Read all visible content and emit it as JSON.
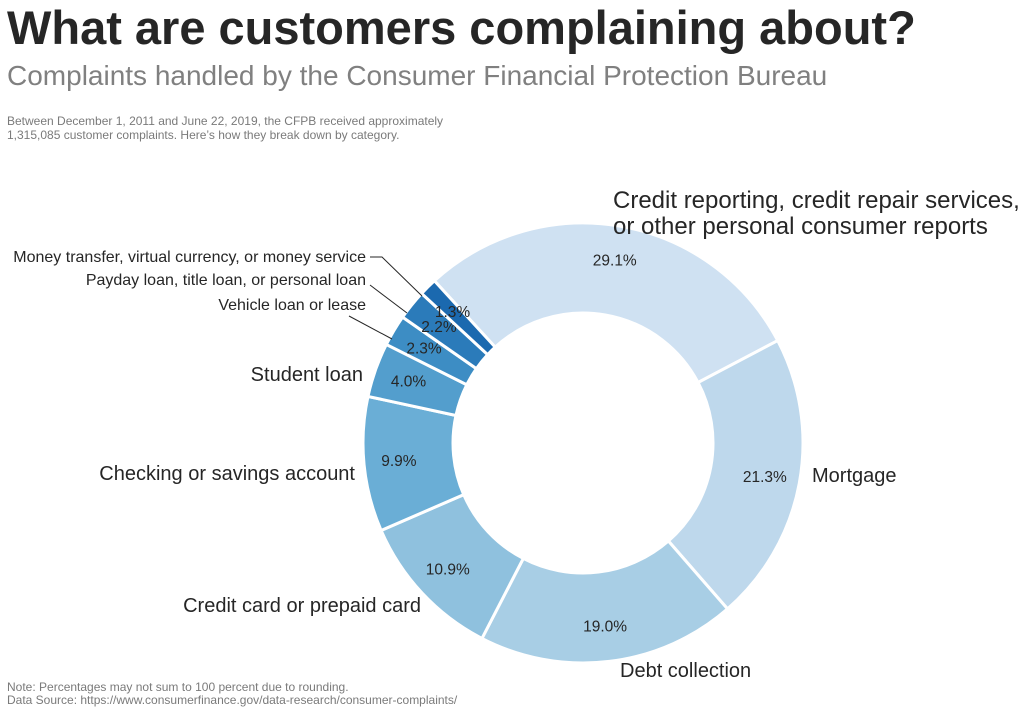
{
  "header": {
    "title": "What are customers complaining about?",
    "subtitle": "Complaints handled by the Consumer Financial Protection Bureau",
    "description_line1": "Between December 1, 2011 and June 22, 2019, the CFPB received approximately",
    "description_line2": "1,315,085 customer complaints. Here’s how they break down by category."
  },
  "footer": {
    "note": "Note: Percentages may not sum to 100 percent due to rounding.",
    "source": "Data Source: https://www.consumerfinance.gov/data-research/consumer-complaints/"
  },
  "chart_data": {
    "type": "pie",
    "style": "donut",
    "direction": "clockwise",
    "slices": [
      {
        "label": "Credit reporting, credit repair services, or other personal consumer reports",
        "label_lines": [
          "Credit reporting, credit repair services,",
          "or other personal consumer reports"
        ],
        "value": 29.1,
        "value_label": "29.1%",
        "color": "#cfe1f2"
      },
      {
        "label": "Mortgage",
        "label_lines": [
          "Mortgage"
        ],
        "value": 21.3,
        "value_label": "21.3%",
        "color": "#bed8ec"
      },
      {
        "label": "Debt collection",
        "label_lines": [
          "Debt collection"
        ],
        "value": 19.0,
        "value_label": "19.0%",
        "color": "#a8cee5"
      },
      {
        "label": "Credit card or prepaid card",
        "label_lines": [
          "Credit card or prepaid card"
        ],
        "value": 10.9,
        "value_label": "10.9%",
        "color": "#8fc1de"
      },
      {
        "label": "Checking or savings account",
        "label_lines": [
          "Checking or savings account"
        ],
        "value": 9.9,
        "value_label": "9.9%",
        "color": "#6aaed6"
      },
      {
        "label": "Student loan",
        "label_lines": [
          "Student loan"
        ],
        "value": 4.0,
        "value_label": "4.0%",
        "color": "#539ecd"
      },
      {
        "label": "Vehicle loan or lease",
        "label_lines": [
          "Vehicle loan or lease"
        ],
        "value": 2.3,
        "value_label": "2.3%",
        "color": "#3d8dc4"
      },
      {
        "label": "Payday loan, title loan, or personal loan",
        "label_lines": [
          "Payday loan, title loan, or personal loan"
        ],
        "value": 2.2,
        "value_label": "2.2%",
        "color": "#2b7bba"
      },
      {
        "label": "Money transfer, virtual currency, or money service",
        "label_lines": [
          "Money transfer, virtual currency, or money service"
        ],
        "value": 1.3,
        "value_label": "1.3%",
        "color": "#1b69af"
      }
    ]
  }
}
